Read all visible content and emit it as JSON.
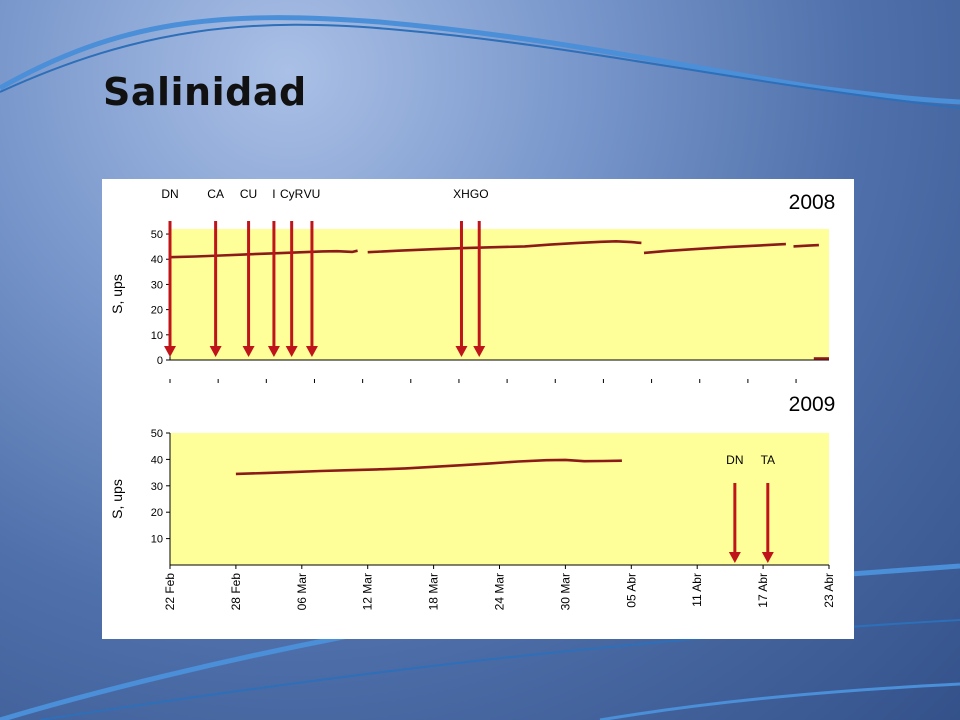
{
  "title": "Salinidad",
  "chart_data": [
    {
      "type": "line",
      "title": "2008",
      "ylabel": "S, ups",
      "ylim": [
        0,
        52
      ],
      "yticks": [
        0,
        10,
        20,
        30,
        40,
        50
      ],
      "grid": false,
      "plot_background": "#ffff99",
      "series": [
        {
          "color": "#8b1a1a",
          "points": [
            [
              0,
              40.8
            ],
            [
              5,
              41.1
            ],
            [
              10,
              41.5
            ],
            [
              15,
              41.9
            ],
            [
              20,
              42.3
            ],
            [
              25,
              42.7
            ],
            [
              30,
              43.1
            ],
            [
              33,
              43.2
            ],
            [
              36,
              42.9
            ],
            [
              37,
              43.4
            ]
          ]
        },
        {
          "color": "#8b1a1a",
          "points": [
            [
              39,
              42.8
            ],
            [
              45,
              43.4
            ],
            [
              52,
              44.0
            ],
            [
              58,
              44.4
            ],
            [
              65,
              44.8
            ],
            [
              70,
              45.1
            ],
            [
              75,
              45.8
            ],
            [
              80,
              46.4
            ],
            [
              85,
              46.9
            ],
            [
              88,
              47.1
            ],
            [
              91,
              46.8
            ],
            [
              93,
              46.5
            ]
          ]
        },
        {
          "color": "#8b1a1a",
          "points": [
            [
              93.5,
              42.5
            ],
            [
              98,
              43.3
            ],
            [
              104,
              44.1
            ],
            [
              110,
              44.8
            ],
            [
              116,
              45.4
            ],
            [
              120,
              45.9
            ],
            [
              121.5,
              46.0
            ]
          ]
        },
        {
          "color": "#8b1a1a",
          "points": [
            [
              123,
              45.1
            ],
            [
              126,
              45.4
            ],
            [
              128,
              45.6
            ]
          ]
        },
        {
          "color": "#8b1a1a",
          "points": [
            [
              127,
              0.6
            ],
            [
              129,
              0.6
            ],
            [
              130,
              0.6
            ]
          ]
        }
      ],
      "markers": [
        {
          "label": "DN",
          "x": 0
        },
        {
          "label": "CA",
          "x": 9
        },
        {
          "label": "CU",
          "x": 15.5
        },
        {
          "label": "I",
          "x": 20.5
        },
        {
          "label": "CyR",
          "x": 24
        },
        {
          "label": "VU",
          "x": 28
        },
        {
          "label": "XH",
          "x": 57.5
        },
        {
          "label": "GO",
          "x": 61
        }
      ]
    },
    {
      "type": "line",
      "title": "2009",
      "ylabel": "S, ups",
      "ylim": [
        0,
        50
      ],
      "yticks": [
        10,
        20,
        30,
        40,
        50
      ],
      "grid": false,
      "plot_background": "#ffff99",
      "categories": [
        "22 Feb",
        "28 Feb",
        "06 Mar",
        "12 Mar",
        "18 Mar",
        "24 Mar",
        "30 Mar",
        "05 Abr",
        "11 Abr",
        "17 Abr",
        "23 Abr"
      ],
      "series": [
        {
          "color": "#8b1a1a",
          "points": [
            [
              7,
              34.5
            ],
            [
              10,
              34.8
            ],
            [
              13,
              35.2
            ],
            [
              16,
              35.6
            ],
            [
              19,
              35.9
            ],
            [
              22,
              36.2
            ],
            [
              25,
              36.6
            ],
            [
              28,
              37.2
            ],
            [
              31,
              37.8
            ],
            [
              34,
              38.5
            ],
            [
              37,
              39.2
            ],
            [
              40,
              39.7
            ],
            [
              42,
              39.8
            ],
            [
              44,
              39.3
            ],
            [
              46,
              39.4
            ],
            [
              48,
              39.5
            ]
          ]
        }
      ],
      "markers": [
        {
          "label": "DN",
          "x": 60
        },
        {
          "label": "TA",
          "x": 63.5
        }
      ]
    }
  ]
}
